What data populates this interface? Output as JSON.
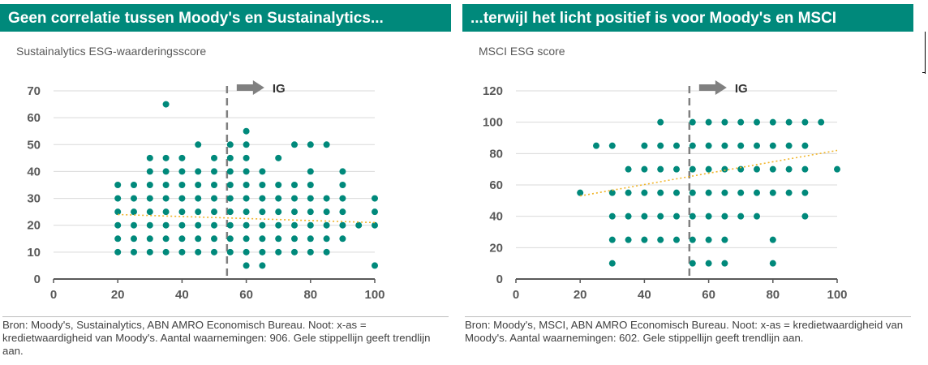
{
  "panels": [
    {
      "title": "Geen correlatie tussen Moody's en Sustainalytics...",
      "subtitle": "Sustainalytics ESG-waarderingsscore",
      "source": "Bron: Moody's, Sustainalytics, ABN AMRO Economisch Bureau. Noot: x-as = kredietwaardigheid van Moody's. Aantal waarnemingen: 906. Gele stippellijn geeft trendlijn aan.",
      "ig_label": "IG"
    },
    {
      "title": "...terwijl het licht positief is voor Moody's en MSCI",
      "subtitle": "MSCI ESG score",
      "source": "Bron: Moody's, MSCI, ABN AMRO Economisch Bureau. Noot: x-as = kredietwaardigheid van Moody's. Aantal waarnemingen: 602. Gele stippellijn geeft trendlijn aan.",
      "ig_label": "IG"
    }
  ],
  "colors": {
    "title_bar": "#00897b",
    "points": "#00897b",
    "trendline": "#f0b429",
    "ig_line": "#7f7f7f",
    "ig_arrow": "#808080",
    "grid": "#d9d9d9",
    "axis": "#595959"
  },
  "chart_data": [
    {
      "type": "scatter",
      "title": "Geen correlatie tussen Moody's en Sustainalytics...",
      "ylabel": "Sustainalytics ESG-waarderingsscore",
      "xlim": [
        0,
        100
      ],
      "ylim": [
        0,
        70
      ],
      "xticks": [
        0,
        20,
        40,
        60,
        80,
        100
      ],
      "yticks": [
        0,
        10,
        20,
        30,
        40,
        50,
        60,
        70
      ],
      "grid": true,
      "ig_threshold_x": 54,
      "ig_label": "IG",
      "trendline": {
        "x": [
          20,
          100
        ],
        "y": [
          24,
          21
        ]
      },
      "points": [
        [
          20,
          10
        ],
        [
          20,
          15
        ],
        [
          20,
          20
        ],
        [
          20,
          25
        ],
        [
          20,
          30
        ],
        [
          20,
          35
        ],
        [
          25,
          10
        ],
        [
          25,
          15
        ],
        [
          25,
          20
        ],
        [
          25,
          25
        ],
        [
          25,
          30
        ],
        [
          25,
          35
        ],
        [
          30,
          10
        ],
        [
          30,
          15
        ],
        [
          30,
          20
        ],
        [
          30,
          25
        ],
        [
          30,
          30
        ],
        [
          30,
          35
        ],
        [
          30,
          40
        ],
        [
          30,
          45
        ],
        [
          35,
          10
        ],
        [
          35,
          15
        ],
        [
          35,
          20
        ],
        [
          35,
          25
        ],
        [
          35,
          30
        ],
        [
          35,
          35
        ],
        [
          35,
          40
        ],
        [
          35,
          45
        ],
        [
          35,
          65
        ],
        [
          40,
          10
        ],
        [
          40,
          15
        ],
        [
          40,
          20
        ],
        [
          40,
          25
        ],
        [
          40,
          30
        ],
        [
          40,
          35
        ],
        [
          40,
          40
        ],
        [
          40,
          45
        ],
        [
          45,
          10
        ],
        [
          45,
          15
        ],
        [
          45,
          20
        ],
        [
          45,
          25
        ],
        [
          45,
          30
        ],
        [
          45,
          35
        ],
        [
          45,
          40
        ],
        [
          45,
          50
        ],
        [
          50,
          10
        ],
        [
          50,
          15
        ],
        [
          50,
          20
        ],
        [
          50,
          25
        ],
        [
          50,
          30
        ],
        [
          50,
          35
        ],
        [
          50,
          40
        ],
        [
          50,
          45
        ],
        [
          55,
          10
        ],
        [
          55,
          15
        ],
        [
          55,
          20
        ],
        [
          55,
          25
        ],
        [
          55,
          30
        ],
        [
          55,
          35
        ],
        [
          55,
          40
        ],
        [
          55,
          45
        ],
        [
          55,
          50
        ],
        [
          60,
          5
        ],
        [
          60,
          10
        ],
        [
          60,
          15
        ],
        [
          60,
          20
        ],
        [
          60,
          25
        ],
        [
          60,
          30
        ],
        [
          60,
          35
        ],
        [
          60,
          40
        ],
        [
          60,
          45
        ],
        [
          60,
          50
        ],
        [
          60,
          55
        ],
        [
          65,
          5
        ],
        [
          65,
          10
        ],
        [
          65,
          15
        ],
        [
          65,
          20
        ],
        [
          65,
          25
        ],
        [
          65,
          30
        ],
        [
          65,
          35
        ],
        [
          65,
          40
        ],
        [
          70,
          10
        ],
        [
          70,
          15
        ],
        [
          70,
          20
        ],
        [
          70,
          25
        ],
        [
          70,
          30
        ],
        [
          70,
          35
        ],
        [
          70,
          45
        ],
        [
          75,
          10
        ],
        [
          75,
          15
        ],
        [
          75,
          20
        ],
        [
          75,
          25
        ],
        [
          75,
          30
        ],
        [
          75,
          35
        ],
        [
          75,
          50
        ],
        [
          80,
          10
        ],
        [
          80,
          15
        ],
        [
          80,
          20
        ],
        [
          80,
          25
        ],
        [
          80,
          30
        ],
        [
          80,
          35
        ],
        [
          80,
          40
        ],
        [
          80,
          50
        ],
        [
          85,
          10
        ],
        [
          85,
          15
        ],
        [
          85,
          20
        ],
        [
          85,
          25
        ],
        [
          85,
          30
        ],
        [
          85,
          50
        ],
        [
          90,
          15
        ],
        [
          90,
          20
        ],
        [
          90,
          25
        ],
        [
          90,
          30
        ],
        [
          90,
          35
        ],
        [
          90,
          40
        ],
        [
          95,
          20
        ],
        [
          100,
          5
        ],
        [
          100,
          20
        ],
        [
          100,
          25
        ],
        [
          100,
          30
        ]
      ]
    },
    {
      "type": "scatter",
      "title": "...terwijl het licht positief is voor Moody's en MSCI",
      "ylabel": "MSCI ESG score",
      "xlim": [
        0,
        100
      ],
      "ylim": [
        0,
        120
      ],
      "xticks": [
        0,
        20,
        40,
        60,
        80,
        100
      ],
      "yticks": [
        0,
        20,
        40,
        60,
        80,
        100,
        120
      ],
      "grid": true,
      "ig_threshold_x": 54,
      "ig_label": "IG",
      "trendline": {
        "x": [
          20,
          100
        ],
        "y": [
          53,
          82
        ]
      },
      "points": [
        [
          20,
          55
        ],
        [
          25,
          85
        ],
        [
          30,
          10
        ],
        [
          30,
          25
        ],
        [
          30,
          40
        ],
        [
          30,
          55
        ],
        [
          30,
          85
        ],
        [
          35,
          25
        ],
        [
          35,
          40
        ],
        [
          35,
          55
        ],
        [
          35,
          70
        ],
        [
          40,
          25
        ],
        [
          40,
          40
        ],
        [
          40,
          55
        ],
        [
          40,
          70
        ],
        [
          40,
          85
        ],
        [
          45,
          25
        ],
        [
          45,
          40
        ],
        [
          45,
          55
        ],
        [
          45,
          70
        ],
        [
          45,
          85
        ],
        [
          45,
          100
        ],
        [
          50,
          25
        ],
        [
          50,
          40
        ],
        [
          50,
          55
        ],
        [
          50,
          70
        ],
        [
          50,
          85
        ],
        [
          55,
          10
        ],
        [
          55,
          25
        ],
        [
          55,
          40
        ],
        [
          55,
          55
        ],
        [
          55,
          70
        ],
        [
          55,
          85
        ],
        [
          55,
          100
        ],
        [
          60,
          10
        ],
        [
          60,
          25
        ],
        [
          60,
          40
        ],
        [
          60,
          55
        ],
        [
          60,
          70
        ],
        [
          60,
          85
        ],
        [
          60,
          100
        ],
        [
          65,
          10
        ],
        [
          65,
          25
        ],
        [
          65,
          40
        ],
        [
          65,
          55
        ],
        [
          65,
          70
        ],
        [
          65,
          85
        ],
        [
          65,
          100
        ],
        [
          70,
          40
        ],
        [
          70,
          55
        ],
        [
          70,
          70
        ],
        [
          70,
          85
        ],
        [
          70,
          100
        ],
        [
          75,
          40
        ],
        [
          75,
          55
        ],
        [
          75,
          70
        ],
        [
          75,
          85
        ],
        [
          75,
          100
        ],
        [
          80,
          10
        ],
        [
          80,
          25
        ],
        [
          80,
          55
        ],
        [
          80,
          70
        ],
        [
          80,
          85
        ],
        [
          80,
          100
        ],
        [
          85,
          55
        ],
        [
          85,
          70
        ],
        [
          85,
          85
        ],
        [
          85,
          100
        ],
        [
          90,
          40
        ],
        [
          90,
          55
        ],
        [
          90,
          70
        ],
        [
          90,
          85
        ],
        [
          90,
          100
        ],
        [
          95,
          100
        ],
        [
          100,
          70
        ]
      ]
    }
  ]
}
